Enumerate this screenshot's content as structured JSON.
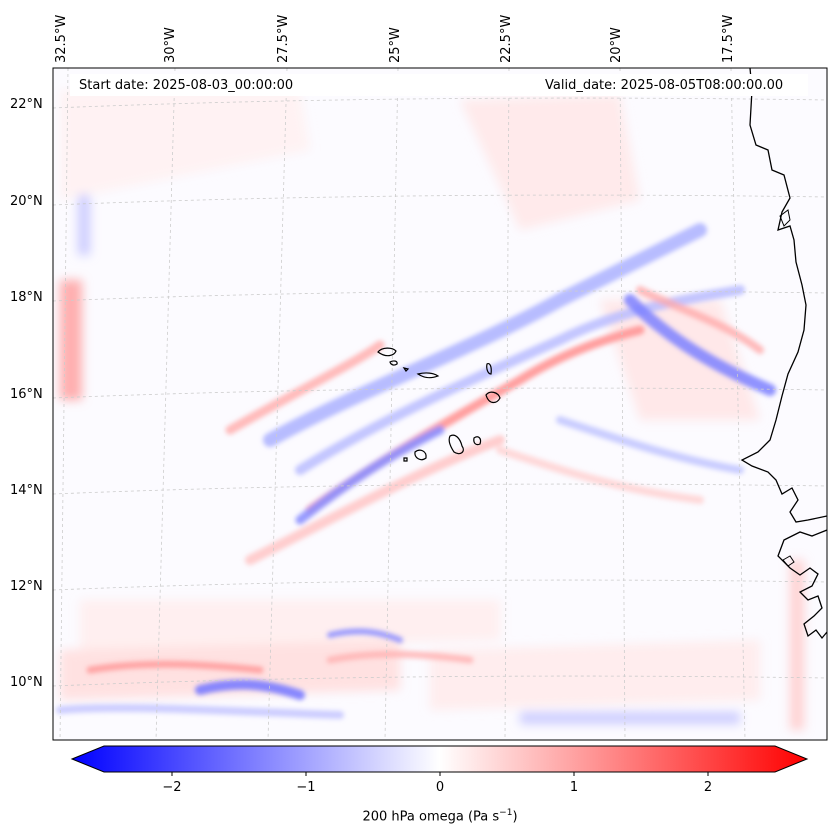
{
  "map": {
    "start_date": "Start date: 2025-08-03_00:00:00",
    "valid_date": "Valid_date: 2025-08-05T08:00:00.00",
    "lon_labels": [
      "32.5°W",
      "30°W",
      "27.5°W",
      "25°W",
      "22.5°W",
      "20°W",
      "17.5°W"
    ],
    "lat_labels": [
      "22°N",
      "20°N",
      "18°N",
      "16°N",
      "14°N",
      "12°N",
      "10°N"
    ]
  },
  "colorbar": {
    "ticks": [
      "−2",
      "−1",
      "0",
      "1",
      "2"
    ],
    "label": "200 hPa omega (Pa s",
    "label_sup": "−1",
    "label_close": ")",
    "min_color": "#0000ff",
    "max_color": "#ff0000"
  }
}
